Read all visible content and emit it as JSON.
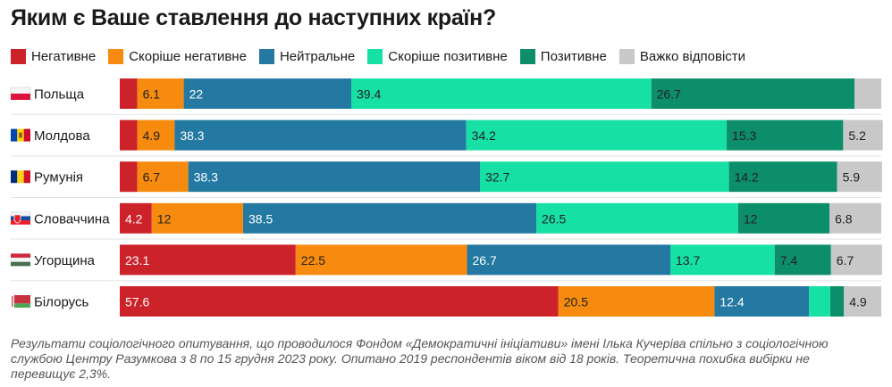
{
  "title": "Яким є Ваше ставлення до наступних країн?",
  "note": "Результати соціологічного опитування, що проводилося Фондом «Демократичні ініціативи» імені Ілька Кучеріва спільно з соціологічною службою Центру Разумкова з 8 по 15 грудня 2023 року. Опитано 2019 респондентів віком від 18 років. Теоретична похибка вибірки не перевищує 2,3%.",
  "legend": [
    {
      "label": "Негативне",
      "color": "#cc2229"
    },
    {
      "label": "Скоріше негативне",
      "color": "#f68b0f"
    },
    {
      "label": "Нейтральне",
      "color": "#2379a1"
    },
    {
      "label": "Скоріше позитивне",
      "color": "#17e0a5"
    },
    {
      "label": "Позитивне",
      "color": "#0d8e6a"
    },
    {
      "label": "Важко відповісти",
      "color": "#c8c8c8"
    }
  ],
  "chart_data": {
    "type": "bar",
    "orientation": "horizontal",
    "stacked": true,
    "title": "Яким є Ваше ставлення до наступних країн?",
    "categories": [
      "Польща",
      "Молдова",
      "Румунія",
      "Словаччина",
      "Угорщина",
      "Білорусь"
    ],
    "flag_icons": [
      "poland-flag-icon",
      "moldova-flag-icon",
      "romania-flag-icon",
      "slovakia-flag-icon",
      "hungary-flag-icon",
      "belarus-flag-icon"
    ],
    "series": [
      {
        "name": "Негативне",
        "color": "#cc2229",
        "values": [
          2.3,
          2.3,
          2.3,
          4.2,
          23.1,
          57.6
        ],
        "labels": [
          "",
          "",
          "",
          "4.2",
          "23.1",
          "57.6"
        ]
      },
      {
        "name": "Скоріше негативне",
        "color": "#f68b0f",
        "values": [
          6.1,
          4.9,
          6.7,
          12,
          22.5,
          20.5
        ],
        "labels": [
          "6.1",
          "4.9",
          "6.7",
          "12",
          "22.5",
          "20.5"
        ]
      },
      {
        "name": "Нейтральне",
        "color": "#2379a1",
        "values": [
          22,
          38.3,
          38.3,
          38.5,
          26.7,
          12.4
        ],
        "labels": [
          "22",
          "38.3",
          "38.3",
          "38.5",
          "26.7",
          "12.4"
        ]
      },
      {
        "name": "Скоріше позитивне",
        "color": "#17e0a5",
        "values": [
          39.4,
          34.2,
          32.7,
          26.5,
          13.7,
          2.8
        ],
        "labels": [
          "39.4",
          "34.2",
          "32.7",
          "26.5",
          "13.7",
          ""
        ]
      },
      {
        "name": "Позитивне",
        "color": "#0d8e6a",
        "values": [
          26.7,
          15.3,
          14.2,
          12,
          7.4,
          1.8
        ],
        "labels": [
          "26.7",
          "15.3",
          "14.2",
          "12",
          "7.4",
          ""
        ]
      },
      {
        "name": "Важко відповісти",
        "color": "#c8c8c8",
        "values": [
          3.5,
          5.2,
          5.9,
          6.8,
          6.7,
          4.9
        ],
        "labels": [
          "",
          "5.2",
          "5.9",
          "6.8",
          "6.7",
          "4.9"
        ]
      }
    ],
    "xlim": [
      0,
      100
    ],
    "grid": false,
    "legend_position": "top"
  }
}
